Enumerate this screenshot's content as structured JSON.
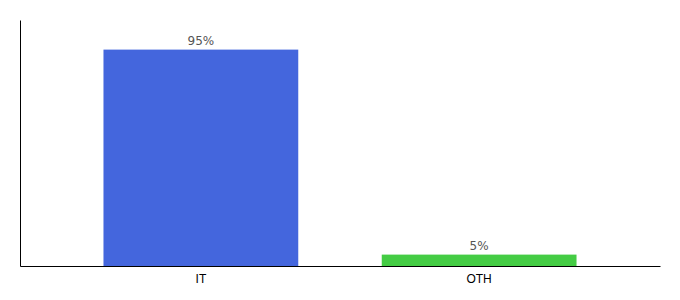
{
  "chart_data": {
    "type": "bar",
    "categories": [
      "IT",
      "OTH"
    ],
    "values": [
      95,
      5
    ],
    "value_labels": [
      "95%",
      "5%"
    ],
    "colors": [
      "#4466dd",
      "#44cc44"
    ],
    "ylim": [
      0,
      108
    ],
    "data_labels": true,
    "tick_labels": "x"
  }
}
